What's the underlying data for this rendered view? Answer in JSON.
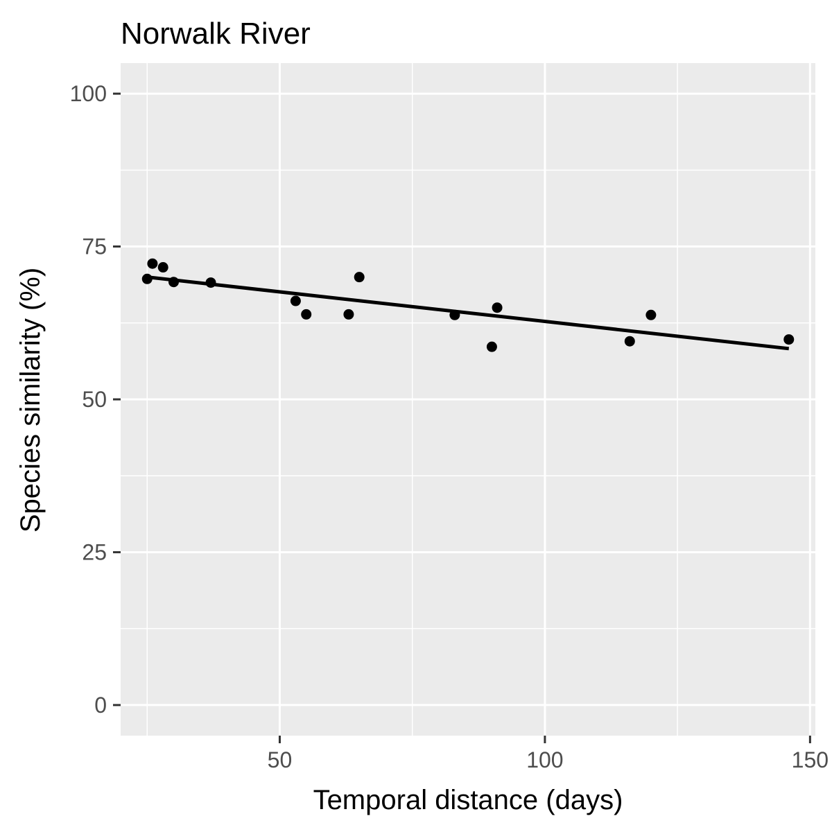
{
  "chart_data": {
    "type": "scatter",
    "title": "Norwalk River",
    "xlabel": "Temporal distance (days)",
    "ylabel": "Species similarity (%)",
    "xlim": [
      20,
      151
    ],
    "ylim": [
      -5,
      105
    ],
    "x_ticks": [
      50,
      100,
      150
    ],
    "x_tick_labels": [
      "50",
      "100",
      "150"
    ],
    "x_minor_ticks": [
      25,
      75,
      125
    ],
    "y_ticks": [
      0,
      25,
      50,
      75,
      100
    ],
    "y_tick_labels": [
      "0",
      "25",
      "50",
      "75",
      "100"
    ],
    "y_minor_ticks": [
      12.5,
      37.5,
      62.5,
      87.5
    ],
    "grid": true,
    "panel_color": "#ebebeb",
    "grid_color": "#ffffff",
    "point_color": "#000000",
    "series": [
      {
        "type": "scatter",
        "x": [
          25,
          26,
          28,
          30,
          37,
          53,
          55,
          63,
          65,
          83,
          90,
          91,
          116,
          120,
          146
        ],
        "y": [
          69.7,
          72.2,
          71.6,
          69.2,
          69.1,
          66.1,
          63.9,
          63.9,
          70.0,
          63.8,
          58.6,
          65.0,
          59.5,
          63.8,
          59.8
        ]
      },
      {
        "type": "line",
        "x": [
          25,
          146
        ],
        "y": [
          70.0,
          58.3
        ]
      }
    ]
  }
}
